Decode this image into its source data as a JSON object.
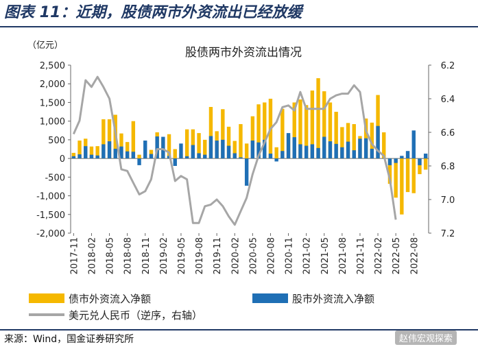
{
  "figure": {
    "title": "图表 11：近期，股债两市外资流出已经放缓",
    "source": "来源：Wind，国金证券研究所",
    "watermark": "赵伟宏观探索"
  },
  "chart_data": {
    "type": "bar",
    "title": "股债两市外资流出情况",
    "left_unit": "（亿元）",
    "ylim": [
      -2000,
      2500
    ],
    "left_ticks": [
      "2,500",
      "2,000",
      "1,500",
      "1,000",
      "500",
      "0",
      "-500",
      "-1,000",
      "-1,500",
      "-2,000"
    ],
    "y2lim": [
      6.2,
      7.2
    ],
    "y2_inverted": true,
    "right_ticks": [
      "6.2",
      "6.4",
      "6.6",
      "6.8",
      "7.0",
      "7.2"
    ],
    "tick_labels": [
      "2017-11",
      "2018-02",
      "2018-05",
      "2018-08",
      "2018-11",
      "2019-02",
      "2019-05",
      "2019-08",
      "2019-11",
      "2020-02",
      "2020-05",
      "2020-08",
      "2020-11",
      "2021-02",
      "2021-05",
      "2021-08",
      "2021-11",
      "2022-02",
      "2022-05",
      "2022-08"
    ],
    "x_start": "2017-11",
    "x_end": "2022-10",
    "colors": {
      "bond": "#f5b800",
      "stock": "#1f6fb5",
      "fx": "#a6a6a6"
    },
    "series": [
      {
        "name": "债市外资流入净额",
        "kind": "bar",
        "values": [
          150,
          480,
          530,
          320,
          330,
          1050,
          1050,
          1170,
          670,
          440,
          1000,
          100,
          50,
          230,
          700,
          520,
          650,
          250,
          130,
          780,
          780,
          680,
          500,
          1380,
          730,
          1320,
          850,
          470,
          920,
          400,
          1130,
          1450,
          1500,
          1600,
          300,
          1330,
          630,
          1500,
          1580,
          1430,
          1820,
          2150,
          1800,
          1500,
          1250,
          840,
          950,
          920,
          600,
          1070,
          960,
          1700,
          700,
          -680,
          -1050,
          -1500,
          -900,
          -930,
          -420,
          -300
        ]
      },
      {
        "name": "股市外资流入净额",
        "kind": "bar",
        "values": [
          60,
          110,
          330,
          100,
          80,
          380,
          460,
          260,
          320,
          190,
          180,
          -180,
          480,
          120,
          590,
          580,
          70,
          -200,
          400,
          60,
          360,
          140,
          100,
          600,
          480,
          500,
          340,
          140,
          30,
          -730,
          480,
          430,
          500,
          130,
          -80,
          200,
          680,
          570,
          380,
          340,
          380,
          280,
          580,
          460,
          390,
          300,
          450,
          220,
          530,
          540,
          260,
          870,
          10,
          -180,
          -120,
          70,
          200,
          750,
          -180,
          130
        ]
      },
      {
        "name": "美元兑人民币（逆序，右轴）",
        "kind": "line",
        "axis": "right",
        "values": [
          6.61,
          6.53,
          6.29,
          6.33,
          6.27,
          6.33,
          6.4,
          6.6,
          6.82,
          6.83,
          6.9,
          6.97,
          6.95,
          6.88,
          6.7,
          6.7,
          6.72,
          6.89,
          6.86,
          6.88,
          7.14,
          7.14,
          7.04,
          7.03,
          7.0,
          7.04,
          7.1,
          7.15,
          7.07,
          6.99,
          6.85,
          6.74,
          6.66,
          6.58,
          6.54,
          6.45,
          6.44,
          6.47,
          6.36,
          6.46,
          6.46,
          6.46,
          6.46,
          6.4,
          6.38,
          6.37,
          6.37,
          6.32,
          6.36,
          6.59,
          6.67,
          6.71,
          6.74,
          6.88,
          7.12
        ]
      }
    ],
    "legend": [
      {
        "label": "债市外资流入净额",
        "kind": "bar",
        "color": "#f5b800"
      },
      {
        "label": "股市外资流入净额",
        "kind": "bar",
        "color": "#1f6fb5"
      },
      {
        "label": "美元兑人民币（逆序，右轴）",
        "kind": "line",
        "color": "#a6a6a6"
      }
    ],
    "legend_position": "bottom",
    "grid": false
  }
}
